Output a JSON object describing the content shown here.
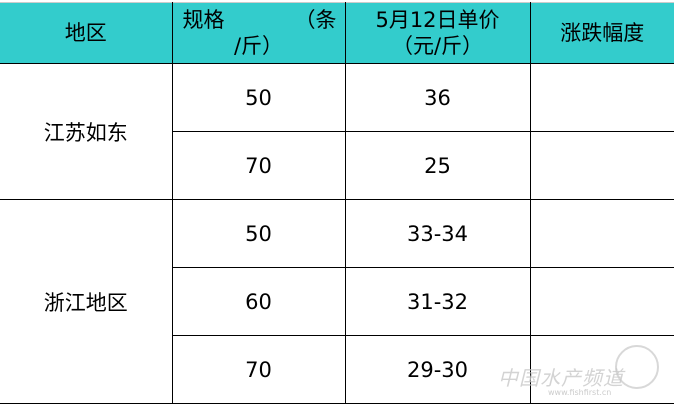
{
  "table": {
    "headers": {
      "region": "地区",
      "spec_line1": "规格",
      "spec_line1_paren": "（条",
      "spec_line2": "/斤）",
      "price_line1": "5月12日单价",
      "price_line2": "（元/斤）",
      "change": "涨跌幅度"
    },
    "groups": [
      {
        "region": "江苏如东",
        "rows": [
          {
            "spec": "50",
            "price": "36",
            "change": ""
          },
          {
            "spec": "70",
            "price": "25",
            "change": ""
          }
        ]
      },
      {
        "region": "浙江地区",
        "rows": [
          {
            "spec": "50",
            "price": "33-34",
            "change": ""
          },
          {
            "spec": "60",
            "price": "31-32",
            "change": ""
          },
          {
            "spec": "70",
            "price": "29-30",
            "change": ""
          }
        ]
      }
    ],
    "header_color": "#33CCCC"
  },
  "watermark": {
    "text": "中国水产频道",
    "url": "www.fishfirst.cn"
  }
}
